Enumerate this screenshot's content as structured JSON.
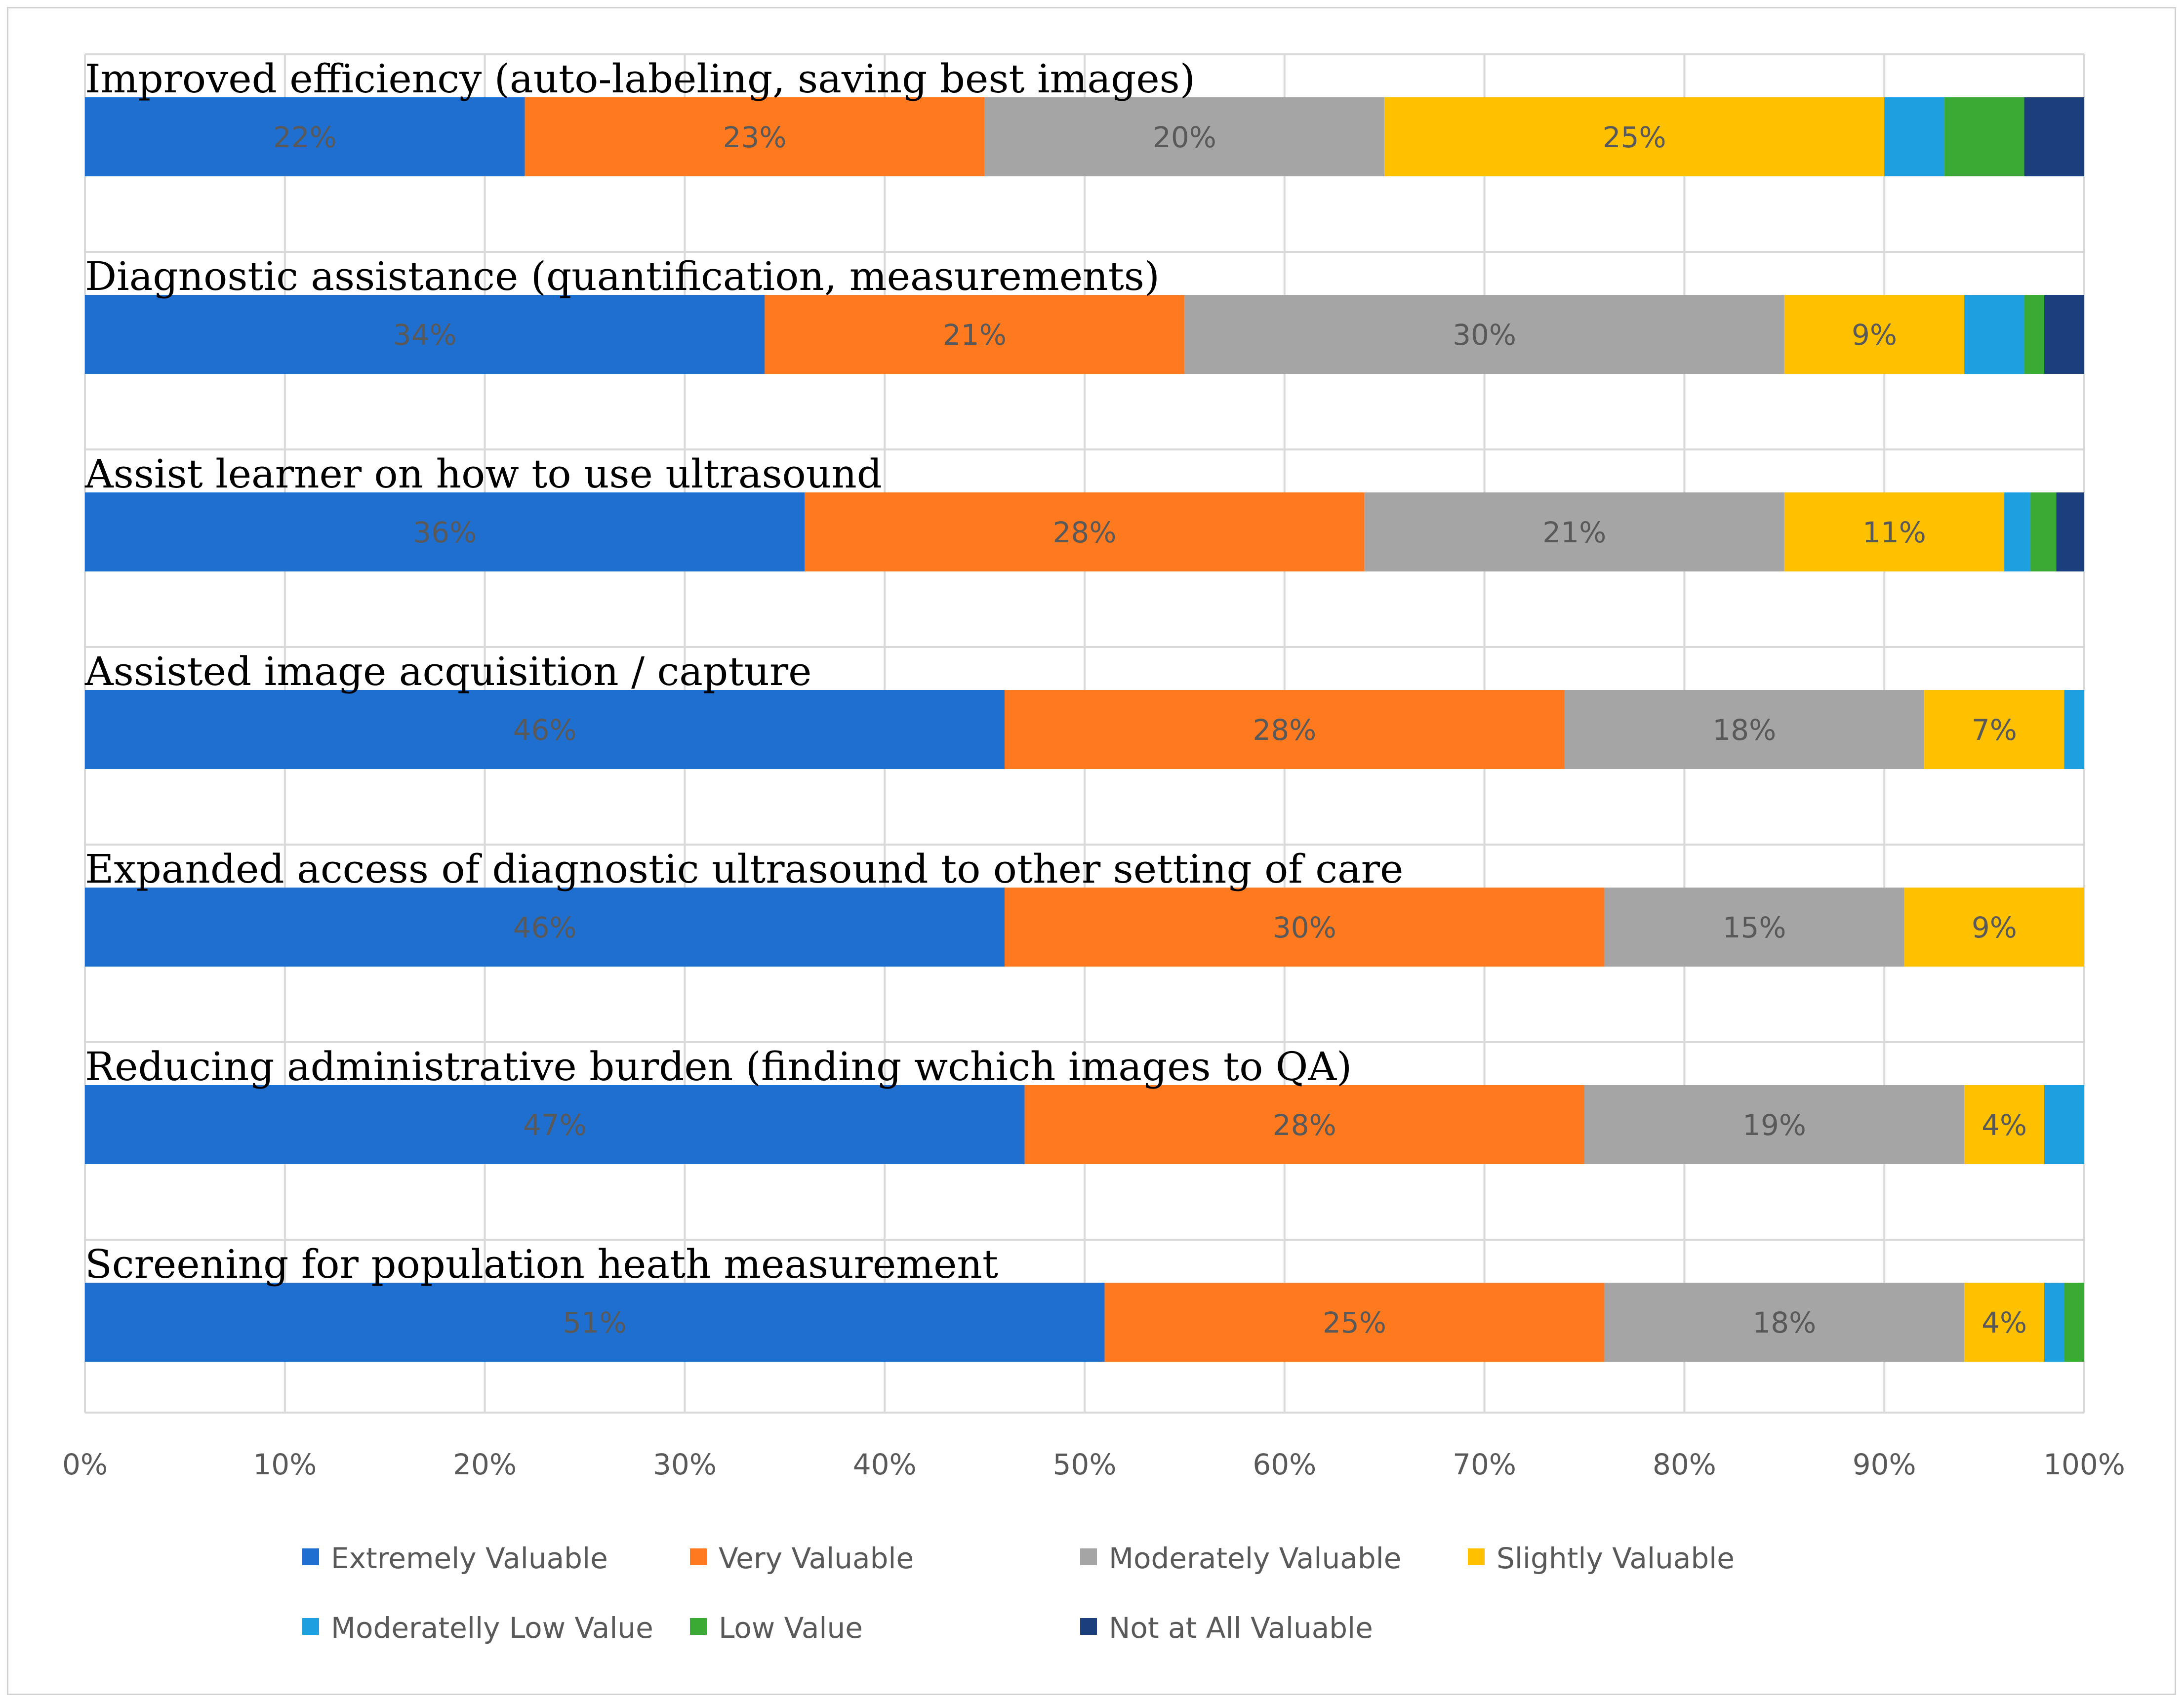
{
  "chart_data": {
    "type": "bar",
    "orientation": "horizontal",
    "stacked": "percent",
    "title": "",
    "xlabel": "",
    "ylabel": "",
    "xlim": [
      0,
      100
    ],
    "grid": true,
    "x_ticks": [
      "0%",
      "10%",
      "20%",
      "30%",
      "40%",
      "50%",
      "60%",
      "70%",
      "80%",
      "90%",
      "100%"
    ],
    "legend_position": "bottom",
    "categories": [
      "Improved efficiency (auto-labeling, saving best images)",
      "Diagnostic assistance (quantification, measurements)",
      "Assist learner on how to use ultrasound",
      "Assisted image acquisition / capture",
      "Expanded access of diagnostic ultrasound to other setting of care",
      "Reducing administrative burden (finding wchich images to QA)",
      "Screening for population heath measurement"
    ],
    "series": [
      {
        "name": "Extremely Valuable",
        "color": "#1f6fd1",
        "values": [
          22,
          34,
          36,
          46,
          46,
          47,
          51
        ],
        "labels": [
          "22%",
          "34%",
          "36%",
          "46%",
          "46%",
          "47%",
          "51%"
        ]
      },
      {
        "name": "Very Valuable",
        "color": "#ff7a1f",
        "values": [
          23,
          21,
          28,
          28,
          30,
          28,
          25
        ],
        "labels": [
          "23%",
          "21%",
          "28%",
          "28%",
          "30%",
          "28%",
          "25%"
        ]
      },
      {
        "name": "Moderately Valuable",
        "color": "#a5a5a5",
        "values": [
          20,
          30,
          21,
          18,
          15,
          19,
          18
        ],
        "labels": [
          "20%",
          "30%",
          "21%",
          "18%",
          "15%",
          "19%",
          "18%"
        ]
      },
      {
        "name": "Slightly Valuable",
        "color": "#ffc000",
        "values": [
          25,
          9,
          11,
          7,
          9,
          4,
          4
        ],
        "labels": [
          "25%",
          "9%",
          "11%",
          "7%",
          "9%",
          "4%",
          "4%"
        ]
      },
      {
        "name": "Moderatelly Low Value",
        "color": "#1ea0e0",
        "values": [
          3,
          3,
          1.3,
          1,
          0,
          2,
          1
        ],
        "labels": [
          "",
          "",
          "",
          "",
          "",
          "",
          ""
        ]
      },
      {
        "name": "Low Value",
        "color": "#3aaa35",
        "values": [
          4,
          1,
          1.3,
          0,
          0,
          0,
          1
        ],
        "labels": [
          "",
          "",
          "",
          "",
          "",
          "",
          ""
        ]
      },
      {
        "name": "Not at All Valuable",
        "color": "#1b3f7d",
        "values": [
          3,
          2,
          1.4,
          0,
          0,
          0,
          0
        ],
        "labels": [
          "",
          "",
          "",
          "",
          "",
          "",
          ""
        ]
      }
    ]
  }
}
